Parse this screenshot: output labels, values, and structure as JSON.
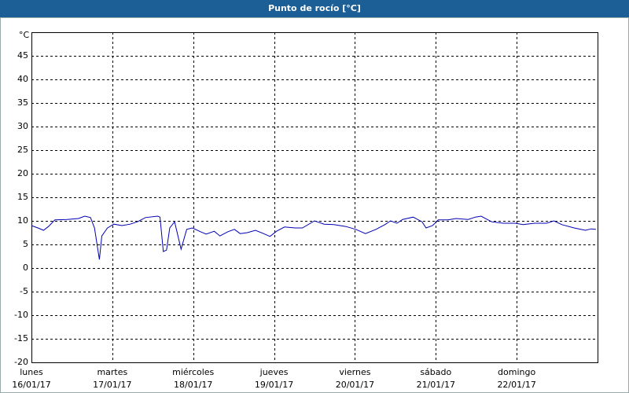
{
  "chart_data": {
    "type": "line",
    "title": "Punto de rocío [°C]",
    "xlim": [
      0,
      7
    ],
    "xticks": [
      {
        "value": 0,
        "label": "lunes",
        "date": "16/01/17"
      },
      {
        "value": 1,
        "label": "martes",
        "date": "17/01/17"
      },
      {
        "value": 2,
        "label": "miércoles",
        "date": "18/01/17"
      },
      {
        "value": 3,
        "label": "jueves",
        "date": "19/01/17"
      },
      {
        "value": 4,
        "label": "viernes",
        "date": "20/01/17"
      },
      {
        "value": 5,
        "label": "sábado",
        "date": "21/01/17"
      },
      {
        "value": 6,
        "label": "domingo",
        "date": "22/01/17"
      }
    ],
    "ylim": [
      -20,
      50
    ],
    "yticks": [
      -20,
      -15,
      -10,
      -5,
      0,
      5,
      10,
      15,
      20,
      25,
      30,
      35,
      40,
      45,
      {
        "value": 50,
        "label": "°C"
      }
    ],
    "grid": true,
    "series": [
      {
        "color": "#0000b4",
        "x": [
          0,
          0.08,
          0.15,
          0.21,
          0.29,
          0.44,
          0.58,
          0.66,
          0.73,
          0.78,
          0.84,
          0.87,
          0.94,
          1.02,
          1.12,
          1.22,
          1.31,
          1.41,
          1.56,
          1.59,
          1.63,
          1.67,
          1.71,
          1.77,
          1.85,
          1.92,
          1.99,
          2.09,
          2.16,
          2.26,
          2.33,
          2.43,
          2.51,
          2.58,
          2.67,
          2.77,
          2.87,
          2.95,
          3.03,
          3.13,
          3.26,
          3.35,
          3.5,
          3.62,
          3.74,
          3.89,
          4.01,
          4.13,
          4.26,
          4.37,
          4.44,
          4.52,
          4.59,
          4.72,
          4.83,
          4.88,
          4.96,
          5.03,
          5.15,
          5.25,
          5.4,
          5.49,
          5.56,
          5.69,
          5.83,
          5.98,
          6.08,
          6.22,
          6.37,
          6.46,
          6.56,
          6.71,
          6.85,
          6.92,
          6.98
        ],
        "values": [
          9,
          8.5,
          8,
          8.8,
          10.2,
          10.3,
          10.5,
          11,
          10.7,
          8.5,
          1.8,
          6.8,
          8.5,
          9.3,
          9,
          9.3,
          9.8,
          10.7,
          11,
          10.8,
          3.5,
          3.8,
          8.5,
          9.8,
          4,
          8.2,
          8.5,
          7.7,
          7.2,
          7.8,
          6.8,
          7.7,
          8.2,
          7.3,
          7.5,
          8,
          7.3,
          6.7,
          7.8,
          8.7,
          8.5,
          8.5,
          10,
          9.3,
          9.2,
          8.8,
          8.2,
          7.3,
          8.2,
          9.2,
          10,
          9.5,
          10.3,
          10.8,
          9.8,
          8.5,
          9,
          10.2,
          10.2,
          10.5,
          10.3,
          10.8,
          11,
          9.8,
          9.5,
          9.5,
          9.2,
          9.5,
          9.5,
          10,
          9.2,
          8.5,
          8,
          8.3,
          8.2
        ]
      }
    ]
  }
}
